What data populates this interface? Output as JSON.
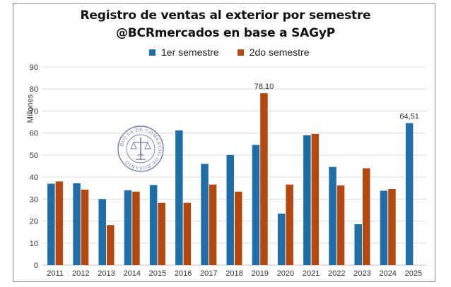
{
  "title_line1": "Registro de ventas al exterior por semestre",
  "title_line2": "@BCRmercados en base a SAGyP",
  "seal_text": "BOLSA DE COMERCIO DE ROSARIO",
  "colors": {
    "series1": "#1f6ea8",
    "series2": "#b5480f",
    "grid": "#dcdcdc"
  },
  "chart_data": {
    "type": "bar",
    "title": "Registro de ventas al exterior por semestre",
    "subtitle": "@BCRmercados en base a SAGyP",
    "ylabel": "Millones",
    "xlabel": "",
    "ylim": [
      0,
      90
    ],
    "yticks": [
      0,
      10,
      20,
      30,
      40,
      50,
      60,
      70,
      80,
      90
    ],
    "grid": true,
    "legend_position": "top",
    "categories": [
      "2011",
      "2012",
      "2013",
      "2014",
      "2015",
      "2016",
      "2017",
      "2018",
      "2019",
      "2020",
      "2021",
      "2022",
      "2023",
      "2024",
      "2025"
    ],
    "series": [
      {
        "name": "1er semestre",
        "values": [
          37,
          37.2,
          30,
          34,
          36.4,
          61.2,
          46,
          50,
          54.6,
          23.4,
          59,
          44.6,
          18.6,
          33.8,
          64.51
        ]
      },
      {
        "name": "2do semestre",
        "values": [
          38,
          34.3,
          18.2,
          33.4,
          28.3,
          28.3,
          36.6,
          33.4,
          78.1,
          36.6,
          59.6,
          36.2,
          44,
          34.6,
          null
        ]
      }
    ],
    "data_labels": [
      {
        "series": 1,
        "index": 8,
        "text": "78,10"
      },
      {
        "series": 0,
        "index": 14,
        "text": "64,51"
      }
    ]
  }
}
